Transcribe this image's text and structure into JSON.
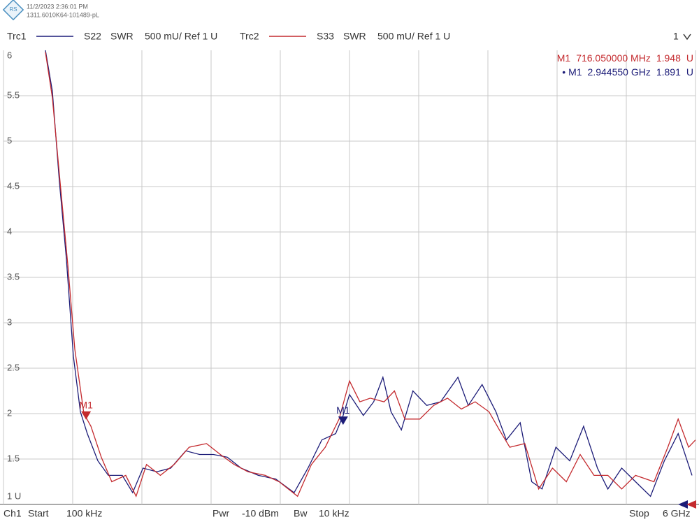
{
  "header": {
    "timestamp": "11/2/2023 2:36:01 PM",
    "device_id": "1311.6010K64-101489-pL",
    "window_number": "1"
  },
  "chart_data": {
    "type": "line",
    "xlim": [
      0.0001,
      6
    ],
    "xticks": [
      0.6,
      1.2,
      1.8,
      2.4,
      3.0,
      3.6,
      4.2,
      4.8,
      5.4
    ],
    "ylim": [
      1,
      6
    ],
    "yticks": [
      {
        "value": 1,
        "label": "1 U"
      },
      1.5,
      2,
      2.5,
      3,
      3.5,
      4,
      4.5,
      5,
      5.5,
      6
    ],
    "grid": true,
    "series": [
      {
        "name": "Trc1",
        "parameter": "S22",
        "format": "SWR",
        "scale": "500 mU/ Ref 1 U",
        "color": "#1c1c78",
        "x": [
          0.364,
          0.424,
          0.485,
          0.545,
          0.606,
          0.667,
          0.727,
          0.818,
          0.909,
          1.03,
          1.12,
          1.21,
          1.33,
          1.45,
          1.58,
          1.7,
          1.82,
          1.94,
          2.06,
          2.21,
          2.36,
          2.52,
          2.64,
          2.76,
          2.88,
          2.945,
          3.0,
          3.12,
          3.21,
          3.29,
          3.36,
          3.45,
          3.55,
          3.67,
          3.79,
          3.94,
          4.03,
          4.15,
          4.27,
          4.36,
          4.48,
          4.58,
          4.67,
          4.79,
          4.91,
          5.03,
          5.15,
          5.24,
          5.36,
          5.48,
          5.61,
          5.73,
          5.85,
          5.97
        ],
        "values": [
          6.0,
          5.55,
          4.55,
          3.71,
          2.63,
          2.02,
          1.78,
          1.48,
          1.32,
          1.32,
          1.13,
          1.4,
          1.36,
          1.4,
          1.59,
          1.55,
          1.55,
          1.52,
          1.4,
          1.32,
          1.28,
          1.13,
          1.4,
          1.71,
          1.78,
          1.98,
          2.21,
          1.98,
          2.13,
          2.4,
          2.02,
          1.82,
          2.25,
          2.09,
          2.13,
          2.4,
          2.09,
          2.32,
          2.02,
          1.71,
          1.9,
          1.25,
          1.17,
          1.63,
          1.48,
          1.86,
          1.4,
          1.17,
          1.4,
          1.25,
          1.09,
          1.48,
          1.78,
          1.32
        ]
      },
      {
        "name": "Trc2",
        "parameter": "S33",
        "format": "SWR",
        "scale": "500 mU/ Ref 1 U",
        "color": "#c42a2e",
        "x": [
          0.364,
          0.424,
          0.485,
          0.558,
          0.618,
          0.697,
          0.758,
          0.848,
          0.939,
          1.06,
          1.15,
          1.24,
          1.36,
          1.48,
          1.61,
          1.76,
          1.88,
          2.0,
          2.12,
          2.27,
          2.39,
          2.55,
          2.67,
          2.79,
          2.91,
          3.0,
          3.09,
          3.18,
          3.3,
          3.39,
          3.48,
          3.61,
          3.73,
          3.85,
          3.97,
          4.09,
          4.21,
          4.3,
          4.39,
          4.52,
          4.64,
          4.76,
          4.88,
          5.0,
          5.12,
          5.24,
          5.36,
          5.48,
          5.64,
          5.76,
          5.85,
          5.94,
          6.0
        ],
        "values": [
          5.98,
          5.48,
          4.63,
          3.63,
          2.71,
          2.0,
          1.86,
          1.52,
          1.25,
          1.32,
          1.09,
          1.44,
          1.32,
          1.44,
          1.63,
          1.67,
          1.55,
          1.44,
          1.36,
          1.32,
          1.25,
          1.09,
          1.44,
          1.63,
          1.94,
          2.36,
          2.13,
          2.17,
          2.13,
          2.25,
          1.94,
          1.94,
          2.09,
          2.17,
          2.05,
          2.13,
          2.02,
          1.82,
          1.63,
          1.67,
          1.17,
          1.4,
          1.25,
          1.55,
          1.32,
          1.32,
          1.17,
          1.32,
          1.25,
          1.63,
          1.94,
          1.63,
          1.71
        ]
      }
    ],
    "markers": [
      {
        "label": "M1",
        "series": 1,
        "x": 0.71605,
        "freq_label": "716.050000 MHz",
        "value": 1.948,
        "unit": "U"
      },
      {
        "label": "M1",
        "series": 0,
        "x": 2.94455,
        "freq_label": "2.944550 GHz",
        "value": 1.891,
        "unit": "U"
      }
    ]
  },
  "footer": {
    "channel": "Ch1",
    "start_label": "Start",
    "start_value": "100 kHz",
    "power_label": "Pwr",
    "power_value": "-10 dBm",
    "bw_label": "Bw",
    "bw_value": "10 kHz",
    "stop_label": "Stop",
    "stop_value": "6 GHz"
  }
}
